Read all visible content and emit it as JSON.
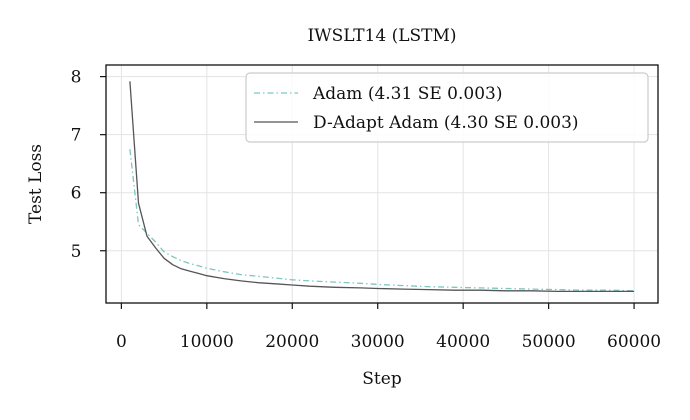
{
  "chart_data": {
    "type": "line",
    "title": "IWSLT14 (LSTM)",
    "xlabel": "Step",
    "ylabel": "Test Loss",
    "xlim": [
      -1800,
      62800
    ],
    "ylim": [
      4.1,
      8.2
    ],
    "xticks": [
      0,
      10000,
      20000,
      30000,
      40000,
      50000,
      60000
    ],
    "yticks": [
      5,
      6,
      7,
      8
    ],
    "grid": true,
    "legend_position": "top-right",
    "series": [
      {
        "name": "Adam (4.31 SE 0.003)",
        "color": "#7ec6c2",
        "style": "dash-dot",
        "x": [
          1000,
          2000,
          3000,
          4000,
          5000,
          6000,
          7000,
          8000,
          9000,
          10000,
          12000,
          14000,
          16000,
          18000,
          20000,
          22000,
          25000,
          28000,
          30000,
          33000,
          36000,
          39000,
          42000,
          45000,
          48000,
          51000,
          54000,
          57000,
          60000
        ],
        "y": [
          6.75,
          5.45,
          5.3,
          5.15,
          4.98,
          4.9,
          4.83,
          4.78,
          4.74,
          4.7,
          4.64,
          4.59,
          4.56,
          4.53,
          4.5,
          4.48,
          4.46,
          4.44,
          4.42,
          4.4,
          4.38,
          4.37,
          4.36,
          4.35,
          4.34,
          4.33,
          4.32,
          4.32,
          4.31
        ]
      },
      {
        "name": "D-Adapt Adam (4.30 SE 0.003)",
        "color": "#555555",
        "style": "solid",
        "x": [
          1000,
          2000,
          3000,
          4000,
          5000,
          6000,
          7000,
          8000,
          9000,
          10000,
          12000,
          14000,
          16000,
          18000,
          20000,
          22000,
          25000,
          28000,
          30000,
          33000,
          36000,
          39000,
          42000,
          45000,
          48000,
          51000,
          54000,
          57000,
          60000
        ],
        "y": [
          7.92,
          5.82,
          5.25,
          5.05,
          4.87,
          4.76,
          4.69,
          4.65,
          4.61,
          4.57,
          4.52,
          4.48,
          4.45,
          4.43,
          4.41,
          4.39,
          4.37,
          4.36,
          4.35,
          4.34,
          4.33,
          4.32,
          4.32,
          4.31,
          4.31,
          4.3,
          4.3,
          4.3,
          4.3
        ]
      }
    ]
  }
}
